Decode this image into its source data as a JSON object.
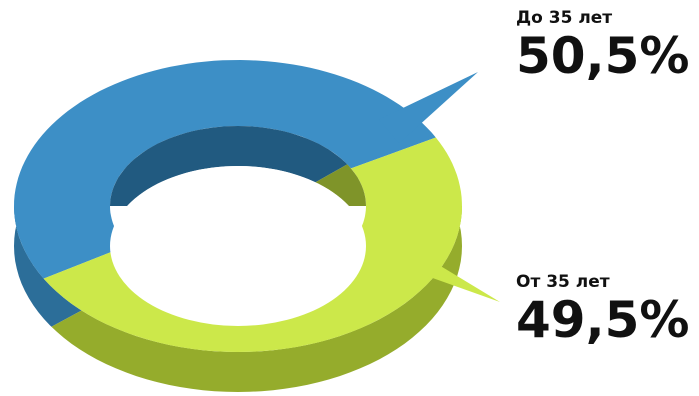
{
  "chart_data": {
    "type": "pie",
    "style": "3d-donut",
    "categories": [
      "До 35 лет",
      "От 35 лет"
    ],
    "values": [
      50.5,
      49.5
    ],
    "value_labels": [
      "50,5%",
      "49,5%"
    ],
    "colors": [
      "#3d8fc6",
      "#cce84a"
    ],
    "side_colors": [
      "#2c6e99",
      "#95ac2c"
    ],
    "inner_colors": [
      "#215a80",
      "#7f9429"
    ],
    "legend": "right",
    "title": "",
    "xlabel": "",
    "ylabel": ""
  }
}
